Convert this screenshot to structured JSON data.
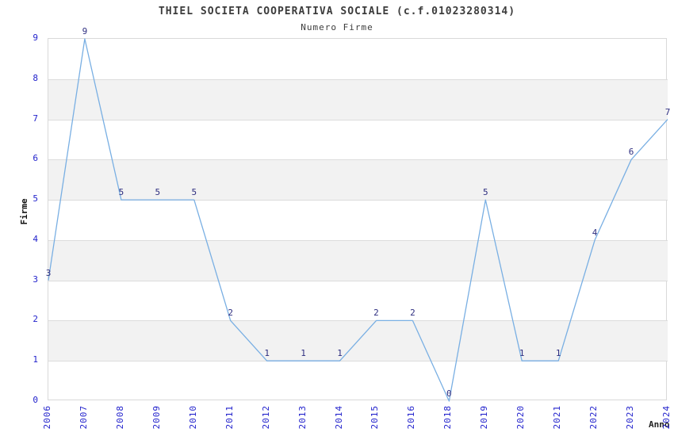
{
  "header": {
    "title": "THIEL SOCIETA COOPERATIVA SOCIALE (c.f.01023280314)",
    "subtitle": "Numero Firme"
  },
  "chart_data": {
    "type": "line",
    "title": "THIEL SOCIETA COOPERATIVA SOCIALE (c.f.01023280314)",
    "subtitle": "Numero Firme",
    "categories": [
      "2006",
      "2007",
      "2008",
      "2009",
      "2010",
      "2011",
      "2012",
      "2013",
      "2014",
      "2015",
      "2016",
      "2018",
      "2019",
      "2020",
      "2021",
      "2022",
      "2023",
      "2024"
    ],
    "values": [
      3,
      9,
      5,
      5,
      5,
      2,
      1,
      1,
      1,
      2,
      2,
      0,
      5,
      1,
      1,
      4,
      6,
      7
    ],
    "xlabel": "Anno",
    "ylabel": "Firme",
    "ylim": [
      0,
      9
    ],
    "yticks": [
      0,
      1,
      2,
      3,
      4,
      5,
      6,
      7,
      8,
      9
    ],
    "grid": true,
    "legend": "none",
    "bands": [
      [
        1,
        2
      ],
      [
        3,
        4
      ],
      [
        5,
        6
      ],
      [
        7,
        8
      ]
    ],
    "colors": {
      "line": "#79afe3",
      "tick_label": "#2222cc",
      "data_label": "#2e2e80",
      "band": "#f2f2f2",
      "grid": "#dcdcdc",
      "title": "#3c3c3c"
    }
  }
}
